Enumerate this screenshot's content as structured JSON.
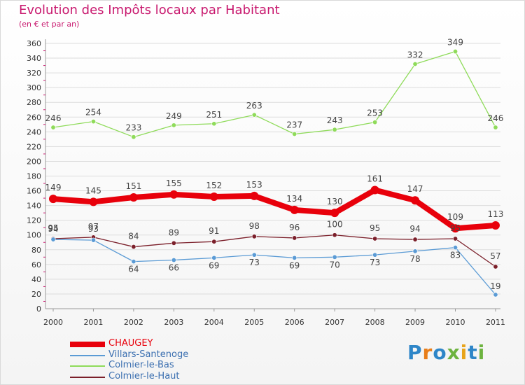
{
  "chart_data": {
    "type": "line",
    "title": "Evolution des Impôts locaux par Habitant",
    "subtitle": "(en € et par an)",
    "categories": [
      "2000",
      "2001",
      "2002",
      "2003",
      "2004",
      "2005",
      "2006",
      "2007",
      "2008",
      "2009",
      "2010",
      "2011"
    ],
    "ylim": [
      0,
      360
    ],
    "yticks": [
      0,
      20,
      40,
      60,
      80,
      100,
      120,
      140,
      160,
      180,
      200,
      220,
      240,
      260,
      280,
      300,
      320,
      340,
      360
    ],
    "series": [
      {
        "name": "CHAUGEY",
        "color": "#e8000b",
        "values": [
          149,
          145,
          151,
          155,
          152,
          153,
          134,
          130,
          161,
          147,
          109,
          113
        ]
      },
      {
        "name": "Villars-Santenoge",
        "color": "#5b9bd5",
        "values": [
          94,
          93,
          64,
          66,
          69,
          73,
          69,
          70,
          73,
          78,
          83,
          19
        ]
      },
      {
        "name": "Colmier-le-Bas",
        "color": "#8fdb5a",
        "values": [
          246,
          254,
          233,
          249,
          251,
          263,
          237,
          243,
          253,
          332,
          349,
          246
        ]
      },
      {
        "name": "Colmier-le-Haut",
        "color": "#7b1f2a",
        "values": [
          95,
          97,
          84,
          89,
          91,
          98,
          96,
          100,
          95,
          94,
          95,
          57
        ]
      }
    ],
    "data_labels": {
      "CHAUGEY": [
        "149",
        "145",
        "151",
        "155",
        "152",
        "153",
        "134",
        "130",
        "161",
        "147",
        "109",
        "113"
      ],
      "Villars-Santenoge": [
        "94",
        "93",
        "64",
        "66",
        "69",
        "73",
        "69",
        "70",
        "73",
        "78",
        "83",
        "19"
      ],
      "Colmier-le-Bas": [
        "246",
        "254",
        "233",
        "249",
        "251",
        "263",
        "237",
        "243",
        "253",
        "332",
        "349",
        "246"
      ],
      "Colmier-le-Haut": [
        "95",
        "97",
        "84",
        "89",
        "91",
        "98",
        "96",
        "100",
        "95",
        "94",
        "95",
        "57"
      ]
    }
  },
  "legend": [
    {
      "label": "CHAUGEY",
      "color": "#e8000b"
    },
    {
      "label": "Villars-Santenoge",
      "color": "#5b9bd5"
    },
    {
      "label": "Colmier-le-Bas",
      "color": "#8fdb5a"
    },
    {
      "label": "Colmier-le-Haut",
      "color": "#7b1f2a"
    }
  ],
  "logo": {
    "text": "Proxiti"
  }
}
